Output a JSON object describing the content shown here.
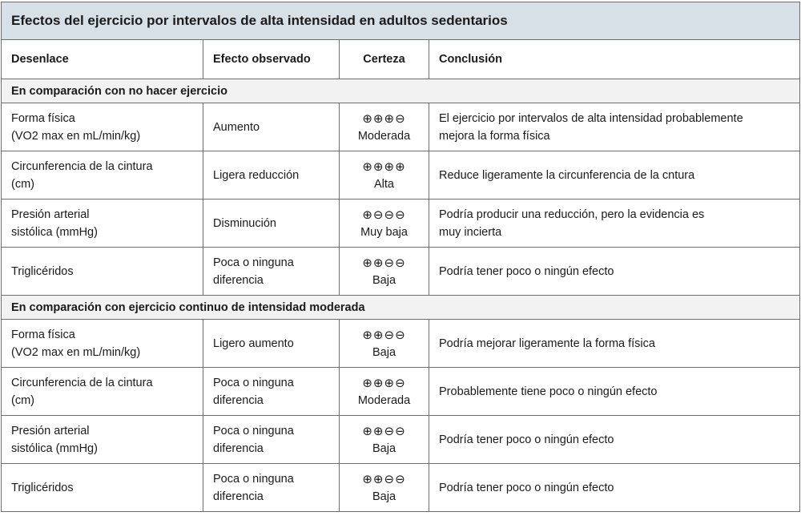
{
  "title": "Efectos del ejercicio por intervalos de alta intensidad en adultos sedentarios",
  "headers": [
    "Desenlace",
    "Efecto observado",
    "Certeza",
    "Conclusión"
  ],
  "sections": [
    {
      "label": "En comparación con no hacer ejercicio",
      "rows": [
        {
          "outcome": "Forma física\n(VO2 max en mL/min/kg)",
          "effect": "Aumento",
          "certainty_symbols": "⊕⊕⊕⊖",
          "certainty": "Moderada",
          "conclusion": "El ejercicio por intervalos de alta intensidad probablemente\nmejora la forma física"
        },
        {
          "outcome": "Circunferencia de la cintura\n(cm)",
          "effect": "Ligera reducción",
          "certainty_symbols": "⊕⊕⊕⊕",
          "certainty": "Alta",
          "conclusion": "Reduce ligeramente la circunferencia de la cntura"
        },
        {
          "outcome": "Presión arterial\nsistólica (mmHg)",
          "effect": "Disminución",
          "certainty_symbols": "⊕⊖⊖⊖",
          "certainty": "Muy baja",
          "conclusion": "Podría producir una reducción, pero la evidencia es\nmuy incierta"
        },
        {
          "outcome": "Triglicéridos",
          "effect": "Poca o ninguna\ndiferencia",
          "certainty_symbols": "⊕⊕⊖⊖",
          "certainty": "Baja",
          "conclusion": "Podría tener poco o ningún efecto"
        }
      ]
    },
    {
      "label": "En comparación con ejercicio continuo de intensidad moderada",
      "rows": [
        {
          "outcome": "Forma física\n(VO2 max en mL/min/kg)",
          "effect": "Ligero aumento",
          "certainty_symbols": "⊕⊕⊖⊖",
          "certainty": "Baja",
          "conclusion": "Podría mejorar ligeramente la forma física"
        },
        {
          "outcome": "Circunferencia de la cintura\n(cm)",
          "effect": "Poca o ninguna\ndiferencia",
          "certainty_symbols": "⊕⊕⊕⊖",
          "certainty": "Moderada",
          "conclusion": "Probablemente tiene poco o ningún efecto"
        },
        {
          "outcome": "Presión arterial\nsistólica (mmHg)",
          "effect": "Poca o ninguna\ndiferencia",
          "certainty_symbols": "⊕⊕⊖⊖",
          "certainty": "Baja",
          "conclusion": "Podría tener poco o ningún efecto"
        },
        {
          "outcome": "Triglicéridos",
          "effect": "Poca o ninguna\ndiferencia",
          "certainty_symbols": "⊕⊕⊖⊖",
          "certainty": "Baja",
          "conclusion": "Podría tener poco o ningún efecto"
        }
      ]
    }
  ],
  "colors": {
    "title_bg": "#d7dfe7",
    "section_bg": "#f2f2f2",
    "border": "#6e6e6e"
  }
}
